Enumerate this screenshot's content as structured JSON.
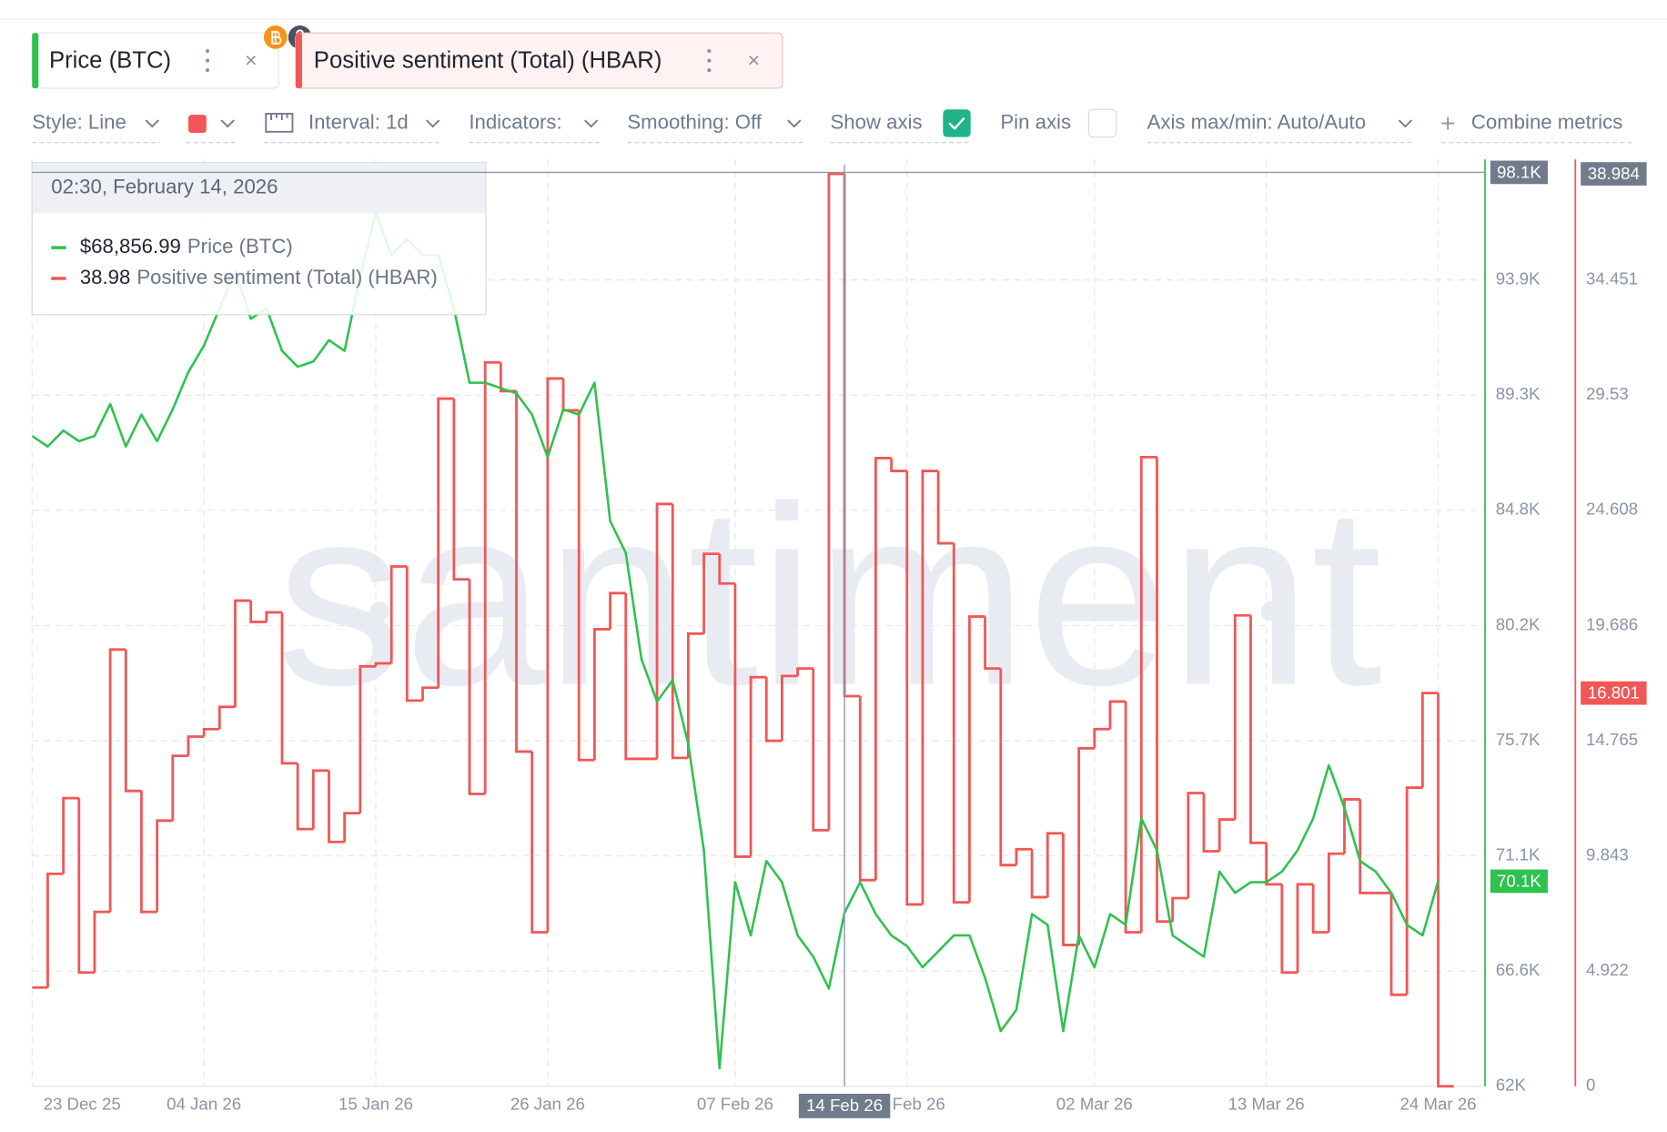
{
  "tabs": {
    "close": "×"
  },
  "toolbar": {
    "style": "Style: Line",
    "interval": "Interval: 1d",
    "indicators": "Indicators:",
    "smoothing": "Smoothing: Off",
    "show_axis": "Show axis",
    "pin_axis": "Pin axis",
    "axis_minmax": "Axis max/min: Auto/Auto",
    "combine": "Combine metrics"
  },
  "tooltip": {
    "time": "02:30, February 14, 2026",
    "price": {
      "value": 68856.99,
      "label": "$68,856.99"
    },
    "sentiment": 38.98
  },
  "chart_data": {
    "type": "line",
    "watermark": "santiment",
    "x": [
      "2025-12-24",
      "2025-12-25",
      "2025-12-26",
      "2025-12-27",
      "2025-12-28",
      "2025-12-29",
      "2025-12-30",
      "2025-12-31",
      "2026-01-01",
      "2026-01-02",
      "2026-01-03",
      "2026-01-04",
      "2026-01-05",
      "2026-01-06",
      "2026-01-07",
      "2026-01-08",
      "2026-01-09",
      "2026-01-10",
      "2026-01-11",
      "2026-01-12",
      "2026-01-13",
      "2026-01-14",
      "2026-01-15",
      "2026-01-16",
      "2026-01-17",
      "2026-01-18",
      "2026-01-19",
      "2026-01-20",
      "2026-01-21",
      "2026-01-22",
      "2026-01-23",
      "2026-01-24",
      "2026-01-25",
      "2026-01-26",
      "2026-01-27",
      "2026-01-28",
      "2026-01-29",
      "2026-01-30",
      "2026-01-31",
      "2026-02-01",
      "2026-02-02",
      "2026-02-03",
      "2026-02-04",
      "2026-02-05",
      "2026-02-06",
      "2026-02-07",
      "2026-02-08",
      "2026-02-09",
      "2026-02-10",
      "2026-02-11",
      "2026-02-12",
      "2026-02-13",
      "2026-02-14",
      "2026-02-15",
      "2026-02-16",
      "2026-02-17",
      "2026-02-18",
      "2026-02-19",
      "2026-02-20",
      "2026-02-21",
      "2026-02-22",
      "2026-02-23",
      "2026-02-24",
      "2026-02-25",
      "2026-02-26",
      "2026-02-27",
      "2026-02-28",
      "2026-03-01",
      "2026-03-02",
      "2026-03-03",
      "2026-03-04",
      "2026-03-05",
      "2026-03-06",
      "2026-03-07",
      "2026-03-08",
      "2026-03-09",
      "2026-03-10",
      "2026-03-11",
      "2026-03-12",
      "2026-03-13",
      "2026-03-14",
      "2026-03-15",
      "2026-03-16",
      "2026-03-17",
      "2026-03-18",
      "2026-03-19",
      "2026-03-20",
      "2026-03-21",
      "2026-03-22",
      "2026-03-23",
      "2026-03-24",
      "2026-03-25"
    ],
    "series": [
      {
        "name": "Price (BTC)",
        "color": "#2ec24f",
        "last_label": {
          "value": 70100,
          "label": "70.1K"
        },
        "values": [
          87690,
          87270,
          87900,
          87480,
          87690,
          88950,
          87270,
          88530,
          87480,
          88740,
          90210,
          91260,
          92730,
          94200,
          92310,
          92730,
          91050,
          90420,
          90630,
          91470,
          91050,
          93990,
          96510,
          94830,
          95460,
          94830,
          94830,
          92730,
          89790,
          89790,
          89580,
          89370,
          88530,
          86850,
          88740,
          88530,
          89790,
          84330,
          83070,
          78880,
          77200,
          78040,
          75520,
          71320,
          62710,
          70060,
          67960,
          70900,
          70060,
          67960,
          67120,
          65860,
          68856.99,
          70060,
          68800,
          67960,
          67540,
          66700,
          67330,
          67960,
          67960,
          66280,
          64180,
          65020,
          68800,
          68380,
          64180,
          67960,
          66700,
          68800,
          68380,
          72580,
          71320,
          67960,
          67540,
          67120,
          70480,
          69640,
          70060,
          70060,
          70480,
          71320,
          72580,
          74680,
          73000,
          70900,
          70480,
          69640,
          68380,
          67960,
          70100,
          null
        ]
      },
      {
        "name": "Positive sentiment (Total) (HBAR)",
        "color": "#f25656",
        "axis": "y2",
        "step": true,
        "last_label": 16.801,
        "values": [
          null,
          4.22,
          9.08,
          12.31,
          4.86,
          7.45,
          18.66,
          12.62,
          7.45,
          11.35,
          14.12,
          14.94,
          15.26,
          16.21,
          20.75,
          19.84,
          20.25,
          13.8,
          10.99,
          13.49,
          10.44,
          11.67,
          17.94,
          18.07,
          22.21,
          16.48,
          17.03,
          29.38,
          21.66,
          12.49,
          30.93,
          29.7,
          14.3,
          6.58,
          30.24,
          28.88,
          13.94,
          19.53,
          21.07,
          13.99,
          13.99,
          24.88,
          14.03,
          19.34,
          22.75,
          21.48,
          9.81,
          17.48,
          14.76,
          17.53,
          17.85,
          10.94,
          38.984,
          16.67,
          8.81,
          26.84,
          26.29,
          7.77,
          26.29,
          23.2,
          7.86,
          20.07,
          17.85,
          9.45,
          10.13,
          8.08,
          10.81,
          6.04,
          14.44,
          15.26,
          16.44,
          6.58,
          26.88,
          7.04,
          8.04,
          12.53,
          10.04,
          11.4,
          20.12,
          10.4,
          8.63,
          4.86,
          8.63,
          6.58,
          9.94,
          12.26,
          8.26,
          8.26,
          3.91,
          12.76,
          16.801,
          0
        ]
      }
    ],
    "xlim": [
      "2025-12-24",
      "2026-03-27"
    ],
    "xticks": [
      {
        "value": "2025-12-23",
        "label": "23 Dec 25"
      },
      {
        "value": "2026-01-04",
        "label": "04 Jan 26"
      },
      {
        "value": "2026-01-15",
        "label": "15 Jan 26"
      },
      {
        "value": "2026-01-26",
        "label": "26 Jan 26"
      },
      {
        "value": "2026-02-07",
        "label": "07 Feb 26"
      },
      {
        "value": "2026-02-18",
        "label": "18 Feb 26"
      },
      {
        "value": "2026-03-02",
        "label": "02 Mar 26"
      },
      {
        "value": "2026-03-13",
        "label": "13 Mar 26"
      },
      {
        "value": "2026-03-24",
        "label": "24 Mar 26"
      }
    ],
    "ylim": [
      62000,
      98400
    ],
    "yticks": [
      {
        "value": 62000,
        "label": "62K"
      },
      {
        "value": 66550,
        "label": "66.6K"
      },
      {
        "value": 71100,
        "label": "71.1K"
      },
      {
        "value": 75650,
        "label": "75.7K"
      },
      {
        "value": 80200,
        "label": "80.2K"
      },
      {
        "value": 84750,
        "label": "84.8K"
      },
      {
        "value": 89300,
        "label": "89.3K"
      },
      {
        "value": 93850,
        "label": "93.9K"
      }
    ],
    "y2lim": [
      0,
      39.373
    ],
    "y2ticks": [
      0,
      4.922,
      9.843,
      14.765,
      19.686,
      24.608,
      29.53,
      34.451
    ],
    "grid": true,
    "crosshair": {
      "x": {
        "value": "2026-02-14",
        "label": "14 Feb 26"
      },
      "y": {
        "value": 98100,
        "label": "98.1K"
      },
      "y2": 38.984
    }
  }
}
